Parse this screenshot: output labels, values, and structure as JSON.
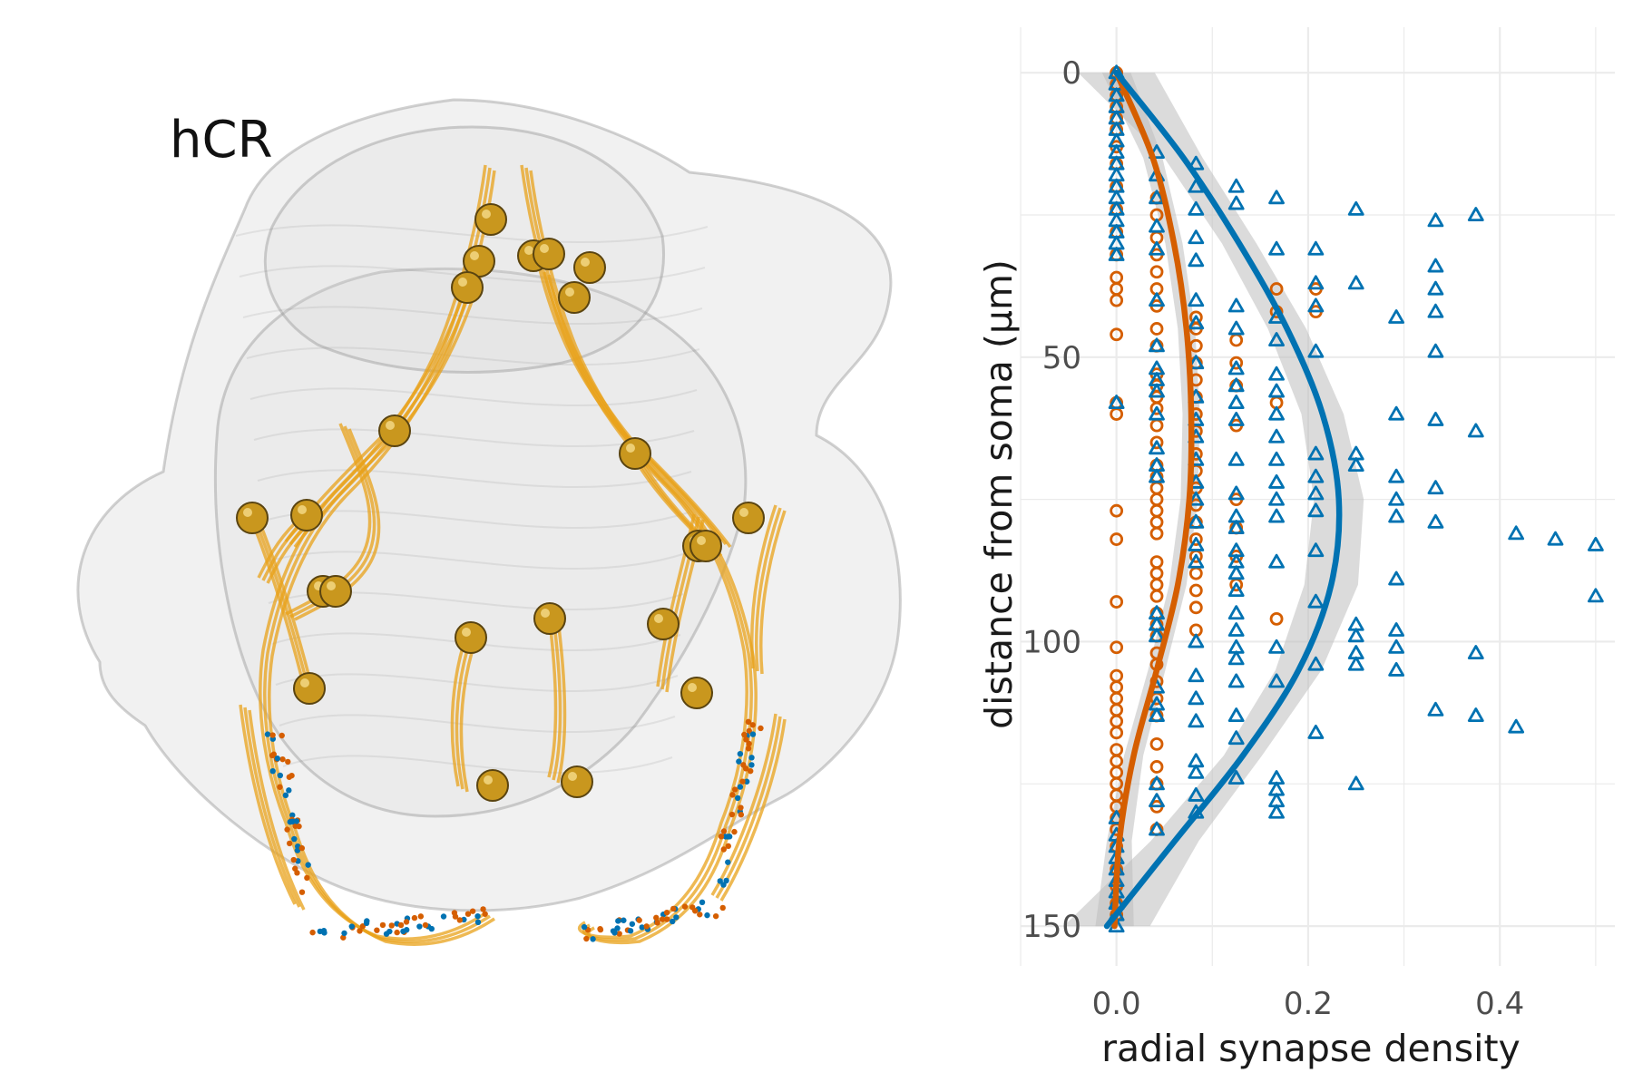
{
  "panel_label": "hCR",
  "colors": {
    "neurite": "#E8A21A",
    "soma": "#C9971E",
    "tissue_fill": "#d8d8d8",
    "tissue_edge": "#9a9a9a",
    "series_orange": "#D55E00",
    "series_blue": "#0072B2",
    "ribbon": "#BEBEBE",
    "grid": "#EBEBEB",
    "tick_text": "#4D4D4D"
  },
  "chart_data": {
    "type": "scatter",
    "title": "",
    "xlabel": "radial synapse density",
    "ylabel": "distance from soma (μm)",
    "xlim": [
      -0.1,
      0.52
    ],
    "ylim": [
      -8,
      157
    ],
    "y_reversed": true,
    "x_ticks": [
      0.0,
      0.2,
      0.4
    ],
    "x_tick_labels": [
      "0.0",
      "0.2",
      "0.4"
    ],
    "y_ticks": [
      0,
      50,
      100,
      150
    ],
    "y_tick_labels": [
      "0",
      "50",
      "100",
      "150"
    ],
    "grid": true,
    "legend": "none",
    "series": [
      {
        "marker": "circle",
        "color": "#D55E00",
        "points": [
          [
            0,
            0
          ],
          [
            0,
            2
          ],
          [
            0,
            4
          ],
          [
            0,
            6
          ],
          [
            0,
            8
          ],
          [
            0,
            10
          ],
          [
            0,
            13
          ],
          [
            0,
            16
          ],
          [
            0,
            20
          ],
          [
            0,
            24
          ],
          [
            0,
            28
          ],
          [
            0,
            32
          ],
          [
            0,
            36
          ],
          [
            0,
            38
          ],
          [
            0,
            40
          ],
          [
            0,
            46
          ],
          [
            0,
            58
          ],
          [
            0,
            60
          ],
          [
            0,
            77
          ],
          [
            0,
            82
          ],
          [
            0,
            93
          ],
          [
            0,
            101
          ],
          [
            0,
            106
          ],
          [
            0,
            108
          ],
          [
            0,
            110
          ],
          [
            0,
            112
          ],
          [
            0,
            114
          ],
          [
            0,
            116
          ],
          [
            0,
            119
          ],
          [
            0,
            121
          ],
          [
            0,
            123
          ],
          [
            0,
            125
          ],
          [
            0,
            127
          ],
          [
            0,
            129
          ],
          [
            0,
            131
          ],
          [
            0,
            133
          ],
          [
            0,
            136
          ],
          [
            0,
            140
          ],
          [
            0,
            143
          ],
          [
            0,
            146
          ],
          [
            0,
            148
          ],
          [
            0.042,
            22
          ],
          [
            0.042,
            25
          ],
          [
            0.042,
            29
          ],
          [
            0.042,
            32
          ],
          [
            0.042,
            35
          ],
          [
            0.042,
            38
          ],
          [
            0.042,
            41
          ],
          [
            0.042,
            45
          ],
          [
            0.042,
            48
          ],
          [
            0.042,
            53
          ],
          [
            0.042,
            55
          ],
          [
            0.042,
            57
          ],
          [
            0.042,
            59
          ],
          [
            0.042,
            62
          ],
          [
            0.042,
            65
          ],
          [
            0.042,
            69
          ],
          [
            0.042,
            71
          ],
          [
            0.042,
            73
          ],
          [
            0.042,
            75
          ],
          [
            0.042,
            77
          ],
          [
            0.042,
            79
          ],
          [
            0.042,
            81
          ],
          [
            0.042,
            86
          ],
          [
            0.042,
            88
          ],
          [
            0.042,
            90
          ],
          [
            0.042,
            92
          ],
          [
            0.042,
            95
          ],
          [
            0.042,
            97
          ],
          [
            0.042,
            99
          ],
          [
            0.042,
            102
          ],
          [
            0.042,
            104
          ],
          [
            0.042,
            107
          ],
          [
            0.042,
            110
          ],
          [
            0.042,
            113
          ],
          [
            0.042,
            118
          ],
          [
            0.042,
            122
          ],
          [
            0.042,
            125
          ],
          [
            0.042,
            129
          ],
          [
            0.042,
            133
          ],
          [
            0.083,
            43
          ],
          [
            0.083,
            45
          ],
          [
            0.083,
            48
          ],
          [
            0.083,
            51
          ],
          [
            0.083,
            54
          ],
          [
            0.083,
            57
          ],
          [
            0.083,
            60
          ],
          [
            0.083,
            63
          ],
          [
            0.083,
            67
          ],
          [
            0.083,
            70
          ],
          [
            0.083,
            73
          ],
          [
            0.083,
            76
          ],
          [
            0.083,
            79
          ],
          [
            0.083,
            82
          ],
          [
            0.083,
            85
          ],
          [
            0.083,
            88
          ],
          [
            0.083,
            91
          ],
          [
            0.083,
            94
          ],
          [
            0.083,
            98
          ],
          [
            0.125,
            47
          ],
          [
            0.125,
            51
          ],
          [
            0.125,
            55
          ],
          [
            0.125,
            62
          ],
          [
            0.125,
            75
          ],
          [
            0.125,
            80
          ],
          [
            0.125,
            85
          ],
          [
            0.125,
            90
          ],
          [
            0.167,
            38
          ],
          [
            0.167,
            42
          ],
          [
            0.167,
            58
          ],
          [
            0.167,
            96
          ],
          [
            0.208,
            38
          ],
          [
            0.208,
            42
          ]
        ]
      },
      {
        "marker": "triangle",
        "color": "#0072B2",
        "points": [
          [
            0,
            0
          ],
          [
            0,
            2
          ],
          [
            0,
            4
          ],
          [
            0,
            6
          ],
          [
            0,
            8
          ],
          [
            0,
            10
          ],
          [
            0,
            12
          ],
          [
            0,
            14
          ],
          [
            0,
            16
          ],
          [
            0,
            18
          ],
          [
            0,
            20
          ],
          [
            0,
            22
          ],
          [
            0,
            24
          ],
          [
            0,
            26
          ],
          [
            0,
            28
          ],
          [
            0,
            30
          ],
          [
            0,
            32
          ],
          [
            0,
            58
          ],
          [
            0,
            131
          ],
          [
            0,
            134
          ],
          [
            0,
            136
          ],
          [
            0,
            138
          ],
          [
            0,
            140
          ],
          [
            0,
            142
          ],
          [
            0,
            144
          ],
          [
            0,
            146
          ],
          [
            0,
            148
          ],
          [
            0,
            150
          ],
          [
            0.042,
            14
          ],
          [
            0.042,
            18
          ],
          [
            0.042,
            22
          ],
          [
            0.042,
            27
          ],
          [
            0.042,
            31
          ],
          [
            0.042,
            40
          ],
          [
            0.042,
            48
          ],
          [
            0.042,
            52
          ],
          [
            0.042,
            54
          ],
          [
            0.042,
            56
          ],
          [
            0.042,
            60
          ],
          [
            0.042,
            66
          ],
          [
            0.042,
            69
          ],
          [
            0.042,
            71
          ],
          [
            0.042,
            95
          ],
          [
            0.042,
            97
          ],
          [
            0.042,
            99
          ],
          [
            0.042,
            108
          ],
          [
            0.042,
            111
          ],
          [
            0.042,
            113
          ],
          [
            0.042,
            125
          ],
          [
            0.042,
            128
          ],
          [
            0.042,
            133
          ],
          [
            0.083,
            16
          ],
          [
            0.083,
            20
          ],
          [
            0.083,
            24
          ],
          [
            0.083,
            29
          ],
          [
            0.083,
            33
          ],
          [
            0.083,
            40
          ],
          [
            0.083,
            44
          ],
          [
            0.083,
            51
          ],
          [
            0.083,
            57
          ],
          [
            0.083,
            61
          ],
          [
            0.083,
            64
          ],
          [
            0.083,
            68
          ],
          [
            0.083,
            72
          ],
          [
            0.083,
            75
          ],
          [
            0.083,
            79
          ],
          [
            0.083,
            83
          ],
          [
            0.083,
            86
          ],
          [
            0.083,
            100
          ],
          [
            0.083,
            106
          ],
          [
            0.083,
            110
          ],
          [
            0.083,
            114
          ],
          [
            0.083,
            121
          ],
          [
            0.083,
            123
          ],
          [
            0.083,
            127
          ],
          [
            0.083,
            130
          ],
          [
            0.125,
            20
          ],
          [
            0.125,
            23
          ],
          [
            0.125,
            41
          ],
          [
            0.125,
            45
          ],
          [
            0.125,
            52
          ],
          [
            0.125,
            55
          ],
          [
            0.125,
            58
          ],
          [
            0.125,
            61
          ],
          [
            0.125,
            68
          ],
          [
            0.125,
            74
          ],
          [
            0.125,
            78
          ],
          [
            0.125,
            80
          ],
          [
            0.125,
            84
          ],
          [
            0.125,
            86
          ],
          [
            0.125,
            88
          ],
          [
            0.125,
            91
          ],
          [
            0.125,
            95
          ],
          [
            0.125,
            98
          ],
          [
            0.125,
            101
          ],
          [
            0.125,
            103
          ],
          [
            0.125,
            107
          ],
          [
            0.125,
            113
          ],
          [
            0.125,
            117
          ],
          [
            0.125,
            124
          ],
          [
            0.167,
            22
          ],
          [
            0.167,
            31
          ],
          [
            0.167,
            43
          ],
          [
            0.167,
            47
          ],
          [
            0.167,
            53
          ],
          [
            0.167,
            56
          ],
          [
            0.167,
            60
          ],
          [
            0.167,
            64
          ],
          [
            0.167,
            68
          ],
          [
            0.167,
            72
          ],
          [
            0.167,
            75
          ],
          [
            0.167,
            78
          ],
          [
            0.167,
            86
          ],
          [
            0.167,
            101
          ],
          [
            0.167,
            107
          ],
          [
            0.167,
            124
          ],
          [
            0.167,
            126
          ],
          [
            0.167,
            128
          ],
          [
            0.167,
            130
          ],
          [
            0.208,
            31
          ],
          [
            0.208,
            37
          ],
          [
            0.208,
            41
          ],
          [
            0.208,
            49
          ],
          [
            0.208,
            67
          ],
          [
            0.208,
            71
          ],
          [
            0.208,
            74
          ],
          [
            0.208,
            77
          ],
          [
            0.208,
            84
          ],
          [
            0.208,
            93
          ],
          [
            0.208,
            104
          ],
          [
            0.208,
            116
          ],
          [
            0.25,
            24
          ],
          [
            0.25,
            37
          ],
          [
            0.25,
            67
          ],
          [
            0.25,
            69
          ],
          [
            0.25,
            97
          ],
          [
            0.25,
            99
          ],
          [
            0.25,
            102
          ],
          [
            0.25,
            104
          ],
          [
            0.25,
            125
          ],
          [
            0.292,
            43
          ],
          [
            0.292,
            60
          ],
          [
            0.292,
            71
          ],
          [
            0.292,
            75
          ],
          [
            0.292,
            78
          ],
          [
            0.292,
            89
          ],
          [
            0.292,
            98
          ],
          [
            0.292,
            101
          ],
          [
            0.292,
            105
          ],
          [
            0.333,
            26
          ],
          [
            0.333,
            34
          ],
          [
            0.333,
            38
          ],
          [
            0.333,
            42
          ],
          [
            0.333,
            49
          ],
          [
            0.333,
            61
          ],
          [
            0.333,
            73
          ],
          [
            0.333,
            79
          ],
          [
            0.333,
            112
          ],
          [
            0.375,
            25
          ],
          [
            0.375,
            63
          ],
          [
            0.375,
            102
          ],
          [
            0.375,
            113
          ],
          [
            0.417,
            81
          ],
          [
            0.417,
            115
          ],
          [
            0.458,
            82
          ],
          [
            0.5,
            83
          ],
          [
            0.5,
            92
          ]
        ]
      }
    ],
    "smooth_fits": [
      {
        "color": "#D55E00",
        "x": [
          0.0,
          0.038,
          0.06,
          0.073,
          0.078,
          0.076,
          0.064,
          0.042,
          0.018,
          0.003,
          -0.002
        ],
        "y": [
          0,
          15,
          30,
          45,
          60,
          75,
          90,
          105,
          120,
          135,
          150
        ],
        "band": [
          0.015,
          0.01,
          0.009,
          0.009,
          0.009,
          0.009,
          0.009,
          0.009,
          0.01,
          0.013,
          0.02
        ]
      },
      {
        "color": "#0072B2",
        "x": [
          0.0,
          0.07,
          0.128,
          0.178,
          0.215,
          0.232,
          0.224,
          0.19,
          0.132,
          0.061,
          -0.01
        ],
        "y": [
          0,
          15,
          30,
          45,
          60,
          75,
          90,
          105,
          120,
          135,
          150
        ],
        "band": [
          0.04,
          0.02,
          0.018,
          0.02,
          0.022,
          0.026,
          0.028,
          0.024,
          0.02,
          0.025,
          0.045
        ]
      }
    ]
  }
}
